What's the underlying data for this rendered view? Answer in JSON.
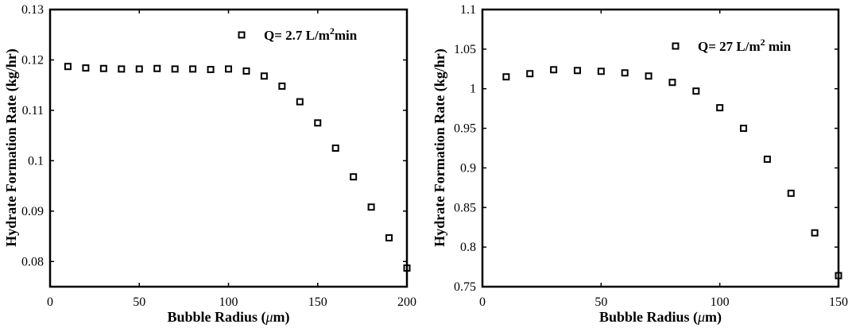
{
  "chart_data": [
    {
      "type": "scatter",
      "title": "",
      "xlabel": "Bubble Radius (μm)",
      "ylabel": "Hydrate Formation Rate (kg/hr)",
      "xlim": [
        0,
        200
      ],
      "ylim": [
        0.075,
        0.13
      ],
      "xticks": [
        0,
        50,
        100,
        150,
        200
      ],
      "yticks": [
        0.08,
        0.09,
        0.1,
        0.11,
        0.12,
        0.13
      ],
      "ytick_labels": [
        "0.08",
        "0.09",
        "0.1",
        "0.11",
        "0.12",
        "0.13"
      ],
      "grid": false,
      "legend_position": "top-right",
      "series": [
        {
          "name": "Q= 2.7 L/m²min",
          "marker": "open-square",
          "x": [
            10,
            20,
            30,
            40,
            50,
            60,
            70,
            80,
            90,
            100,
            110,
            120,
            130,
            140,
            150,
            160,
            170,
            180,
            190,
            200
          ],
          "y": [
            0.1187,
            0.1184,
            0.1183,
            0.1182,
            0.1182,
            0.1183,
            0.1182,
            0.1182,
            0.1181,
            0.1182,
            0.1178,
            0.1168,
            0.1148,
            0.1117,
            0.1075,
            0.1025,
            0.0968,
            0.0908,
            0.0847,
            0.0787
          ]
        }
      ]
    },
    {
      "type": "scatter",
      "title": "",
      "xlabel": "Bubble Radius (μm)",
      "ylabel": "Hydrate Formation Rate (kg/hr)",
      "xlim": [
        0,
        150
      ],
      "ylim": [
        0.75,
        1.1
      ],
      "xticks": [
        0,
        50,
        100,
        150
      ],
      "yticks": [
        0.75,
        0.8,
        0.85,
        0.9,
        0.95,
        1.0,
        1.05,
        1.1
      ],
      "ytick_labels": [
        "0.75",
        "0.8",
        "0.85",
        "0.9",
        "0.95",
        "1",
        "1.05",
        "1.1"
      ],
      "grid": false,
      "legend_position": "top-right",
      "series": [
        {
          "name": "Q= 27 L/m² min",
          "marker": "open-square",
          "x": [
            10,
            20,
            30,
            40,
            50,
            60,
            70,
            80,
            90,
            100,
            110,
            120,
            130,
            140,
            150
          ],
          "y": [
            1.015,
            1.019,
            1.024,
            1.023,
            1.022,
            1.02,
            1.016,
            1.008,
            0.997,
            0.976,
            0.95,
            0.911,
            0.868,
            0.818,
            0.764
          ]
        }
      ]
    }
  ]
}
